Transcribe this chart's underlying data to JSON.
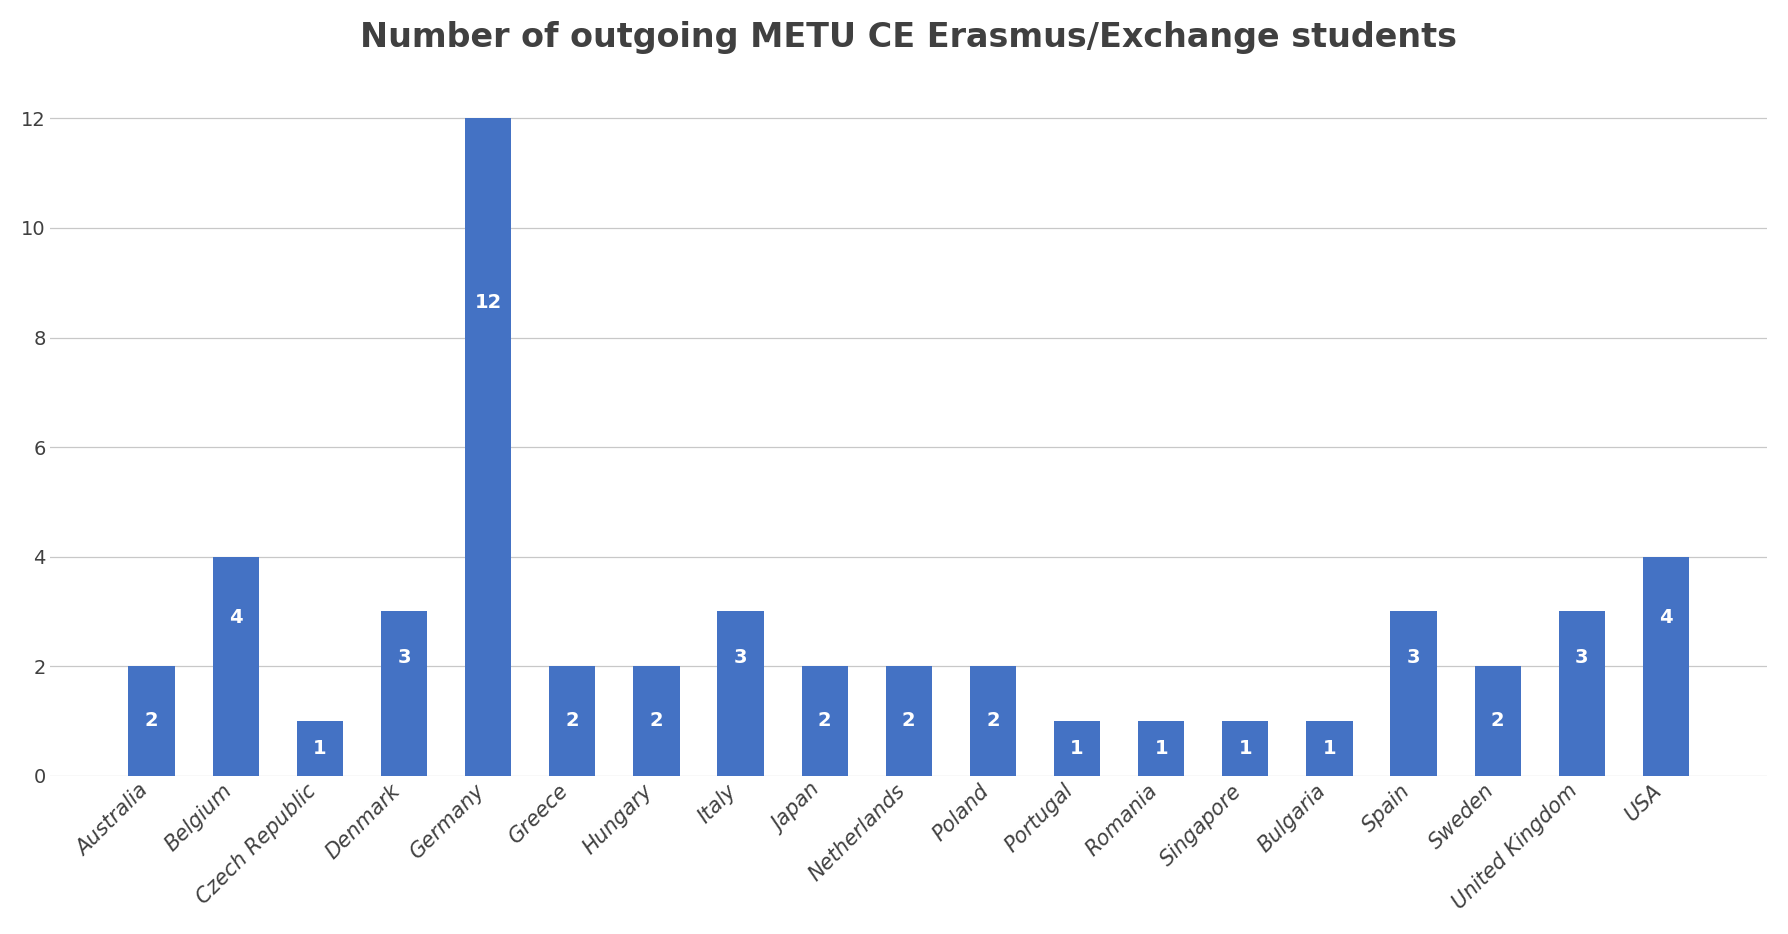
{
  "title": "Number of outgoing METU CE Erasmus/Exchange students",
  "categories": [
    "Australia",
    "Belgium",
    "Czech Republic",
    "Denmark",
    "Germany",
    "Greece",
    "Hungary",
    "Italy",
    "Japan",
    "Netherlands",
    "Poland",
    "Portugal",
    "Romania",
    "Singapore",
    "Bulgaria",
    "Spain",
    "Sweden",
    "United Kingdom",
    "USA"
  ],
  "values": [
    2,
    4,
    1,
    3,
    12,
    2,
    2,
    3,
    2,
    2,
    2,
    1,
    1,
    1,
    1,
    3,
    2,
    3,
    4
  ],
  "bar_color": "#4472C4",
  "label_color": "#ffffff",
  "title_color": "#404040",
  "background_color": "#ffffff",
  "ylim": [
    0,
    12.8
  ],
  "yticks": [
    0,
    2,
    4,
    6,
    8,
    10,
    12
  ],
  "title_fontsize": 24,
  "label_fontsize": 14,
  "tick_fontsize": 14,
  "xtick_fontsize": 15,
  "grid_color": "#c8c8c8",
  "bar_width": 0.55
}
